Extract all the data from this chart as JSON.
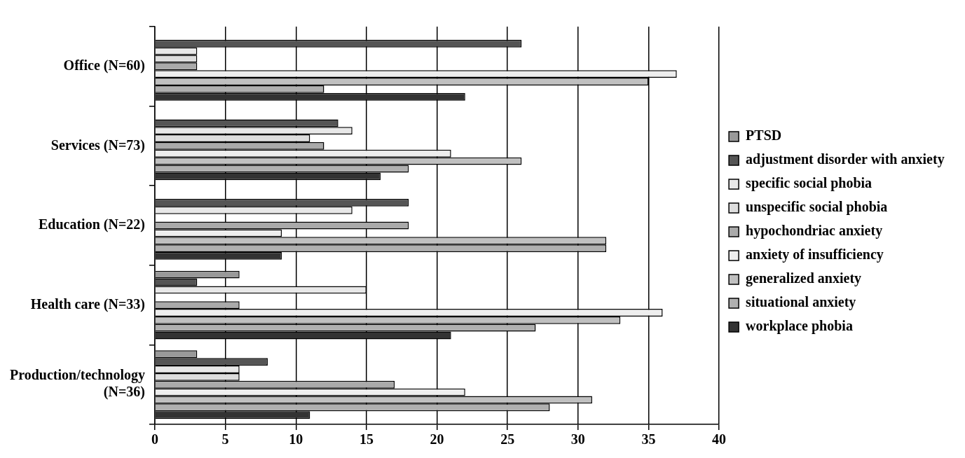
{
  "chart_data": {
    "type": "bar",
    "orientation": "horizontal",
    "categories": [
      "Office (N=60)",
      "Services (N=73)",
      "Education (N=22)",
      "Health care (N=33)",
      "Production/technology (N=36)"
    ],
    "series": [
      {
        "name": "PTSD",
        "color": "#999999",
        "values": [
          0,
          0,
          0,
          6,
          3
        ]
      },
      {
        "name": "adjustment disorder with anxiety",
        "color": "#555555",
        "values": [
          26,
          13,
          18,
          3,
          8
        ]
      },
      {
        "name": "specific social phobia",
        "color": "#e8e8e8",
        "values": [
          3,
          14,
          14,
          15,
          6
        ]
      },
      {
        "name": "unspecific social phobia",
        "color": "#dddddd",
        "values": [
          3,
          11,
          0,
          0,
          6
        ]
      },
      {
        "name": "hypochondriac anxiety",
        "color": "#aaaaaa",
        "values": [
          3,
          12,
          18,
          6,
          17
        ]
      },
      {
        "name": "anxiety of insufficiency",
        "color": "#eeeeee",
        "values": [
          37,
          21,
          9,
          36,
          22
        ]
      },
      {
        "name": "generalized anxiety",
        "color": "#c0c0c0",
        "values": [
          35,
          26,
          32,
          33,
          31
        ]
      },
      {
        "name": "situational anxiety",
        "color": "#b0b0b0",
        "values": [
          12,
          18,
          32,
          27,
          28
        ]
      },
      {
        "name": "workplace phobia",
        "color": "#333333",
        "values": [
          22,
          16,
          9,
          21,
          11
        ]
      }
    ],
    "xlim": [
      0,
      40
    ],
    "xticks": [
      0,
      5,
      10,
      15,
      20,
      25,
      30,
      35,
      40
    ],
    "grid": "x",
    "legend": "right"
  }
}
